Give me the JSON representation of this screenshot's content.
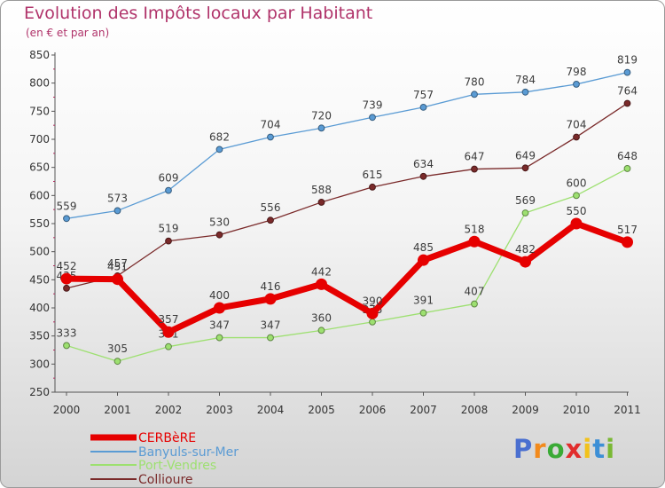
{
  "title": "Evolution des Impôts locaux par Habitant",
  "subtitle": "(en € et par an)",
  "logo": {
    "letters": [
      "P",
      "r",
      "o",
      "x",
      "i",
      "t",
      "i"
    ],
    "colors": [
      "#4a6fd0",
      "#f28a1c",
      "#3aaa35",
      "#e12d2d",
      "#f2c21b",
      "#3d8fd6",
      "#7ab834"
    ]
  },
  "chart_data": {
    "type": "line",
    "title": "Evolution des Impôts locaux par Habitant",
    "subtitle": "(en € et par an)",
    "x": [
      "2000",
      "2001",
      "2002",
      "2003",
      "2004",
      "2005",
      "2006",
      "2007",
      "2008",
      "2009",
      "2010",
      "2011"
    ],
    "ylim": [
      250,
      850
    ],
    "yticks": [
      250,
      300,
      350,
      400,
      450,
      500,
      550,
      600,
      650,
      700,
      750,
      800,
      850
    ],
    "grid": false,
    "legend_position": "bottom-left",
    "series": [
      {
        "name": "Banyuls-sur-Mer",
        "color": "#5a9bd4",
        "values": [
          559,
          573,
          609,
          682,
          704,
          720,
          739,
          757,
          780,
          784,
          798,
          819
        ]
      },
      {
        "name": "Port-Vendres",
        "color": "#9de070",
        "values": [
          333,
          305,
          331,
          347,
          347,
          360,
          375,
          391,
          407,
          569,
          600,
          648
        ]
      },
      {
        "name": "Collioure",
        "color": "#7a2a2a",
        "values": [
          435,
          457,
          519,
          530,
          556,
          588,
          615,
          634,
          647,
          649,
          704,
          764
        ]
      },
      {
        "name": "CERBèRE",
        "color": "#e60000",
        "values": [
          452,
          451,
          357,
          400,
          416,
          442,
          390,
          485,
          518,
          482,
          550,
          517
        ]
      }
    ],
    "legend_order": [
      "CERBèRE",
      "Banyuls-sur-Mer",
      "Port-Vendres",
      "Collioure"
    ]
  }
}
